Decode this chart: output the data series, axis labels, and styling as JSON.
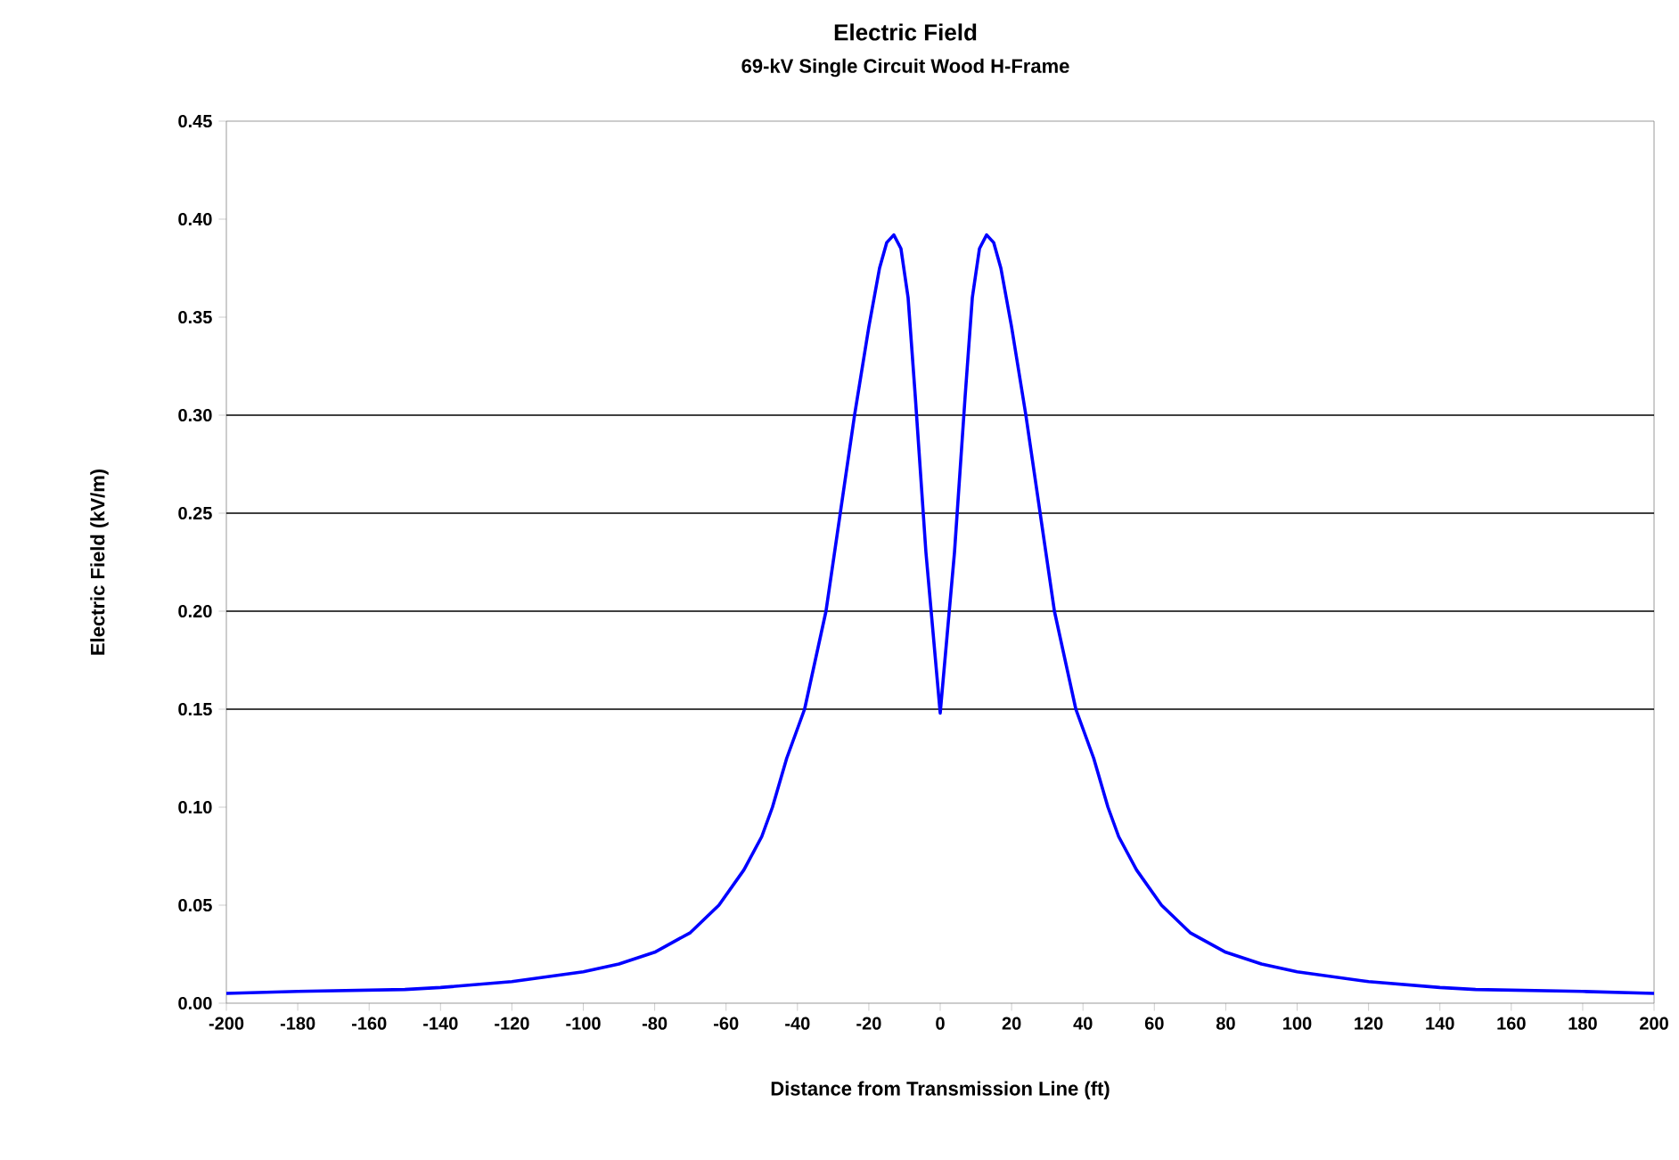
{
  "chart_data": {
    "type": "line",
    "title": "Electric Field",
    "subtitle": "69-kV Single Circuit Wood H-Frame",
    "xlabel": "Distance from Transmission Line (ft)",
    "ylabel": "Electric Field (kV/m)",
    "xlim": [
      -200,
      200
    ],
    "xticks": [
      -200,
      -180,
      -160,
      -140,
      -120,
      -100,
      -80,
      -60,
      -40,
      -20,
      0,
      20,
      40,
      60,
      80,
      100,
      120,
      140,
      160,
      180,
      200
    ],
    "ylim": [
      0,
      0.45
    ],
    "yticks": [
      {
        "value": 0,
        "label": "0.00"
      },
      {
        "value": 0.05,
        "label": "0.05"
      },
      {
        "value": 0.1,
        "label": "0.10"
      },
      {
        "value": 0.15,
        "label": "0.15"
      },
      {
        "value": 0.2,
        "label": "0.20"
      },
      {
        "value": 0.25,
        "label": "0.25"
      },
      {
        "value": 0.3,
        "label": "0.30"
      },
      {
        "value": 0.35,
        "label": "0.35"
      },
      {
        "value": 0.4,
        "label": "0.40"
      },
      {
        "value": 0.45,
        "label": "0.45"
      }
    ],
    "x": [
      -200,
      -180,
      -150,
      -140,
      -120,
      -100,
      -90,
      -80,
      -70,
      -62,
      -55,
      -50,
      -47,
      -43,
      -38,
      -35,
      -32,
      -28,
      -24,
      -20,
      -17,
      -15,
      -13,
      -11,
      -9,
      -7,
      -4,
      0,
      4,
      7,
      9,
      11,
      13,
      15,
      17,
      20,
      24,
      28,
      32,
      35,
      38,
      43,
      47,
      50,
      55,
      62,
      70,
      80,
      90,
      100,
      120,
      140,
      150,
      180,
      200
    ],
    "series": [
      {
        "color": "#0000ff",
        "values": [
          0.005,
          0.006,
          0.007,
          0.008,
          0.011,
          0.016,
          0.02,
          0.026,
          0.036,
          0.05,
          0.068,
          0.085,
          0.1,
          0.125,
          0.15,
          0.175,
          0.2,
          0.25,
          0.3,
          0.345,
          0.375,
          0.388,
          0.392,
          0.385,
          0.36,
          0.31,
          0.23,
          0.148,
          0.23,
          0.31,
          0.36,
          0.385,
          0.392,
          0.388,
          0.375,
          0.345,
          0.3,
          0.25,
          0.2,
          0.175,
          0.15,
          0.125,
          0.1,
          0.085,
          0.068,
          0.05,
          0.036,
          0.026,
          0.02,
          0.016,
          0.011,
          0.008,
          0.007,
          0.006,
          0.005
        ]
      }
    ],
    "ref_lines": [
      {
        "axis": "y",
        "value": 0.15,
        "color": "#000000"
      },
      {
        "axis": "y",
        "value": 0.2,
        "color": "#000000"
      },
      {
        "axis": "y",
        "value": 0.25,
        "color": "#000000"
      },
      {
        "axis": "y",
        "value": 0.3,
        "color": "#000000"
      }
    ],
    "marker": "none",
    "line_style": "solid"
  }
}
